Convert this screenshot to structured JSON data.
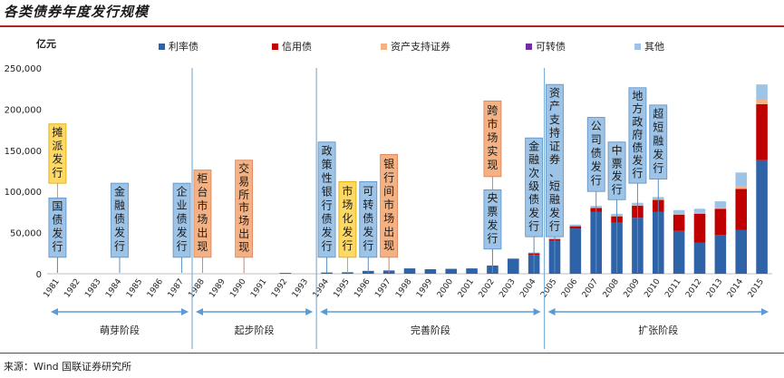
{
  "title": "各类债券年度发行规模",
  "source": "来源：Wind 国联证券研究所",
  "colors": {
    "rate": "#2e63a8",
    "credit": "#c00000",
    "abs": "#f4b183",
    "convertible": "#7030a0",
    "other": "#9dc3e6",
    "blue_box": "#9dc3e6",
    "yellow_box": "#ffd966",
    "orange_box": "#f4b183",
    "accent": "#b22222"
  },
  "chart_data": {
    "type": "bar",
    "stacked": true,
    "title": "各类债券年度发行规模",
    "ylabel": "亿元",
    "xlabel": "",
    "ylim": [
      0,
      250000
    ],
    "yticks": [
      "0",
      "50,000",
      "100,000",
      "150,000",
      "200,000",
      "250,000"
    ],
    "ytick_values": [
      0,
      50000,
      100000,
      150000,
      200000,
      250000
    ],
    "legend_position": "top",
    "categories": [
      "1981",
      "1982",
      "1983",
      "1984",
      "1985",
      "1986",
      "1987",
      "1988",
      "1989",
      "1990",
      "1991",
      "1992",
      "1993",
      "1994",
      "1995",
      "1996",
      "1997",
      "1998",
      "1999",
      "2000",
      "2001",
      "2002",
      "2003",
      "2004",
      "2005",
      "2006",
      "2007",
      "2008",
      "2009",
      "2010",
      "2011",
      "2012",
      "2013",
      "2014",
      "2015"
    ],
    "series": [
      {
        "name": "利率债",
        "key": "rate",
        "values": [
          0,
          0,
          0,
          0,
          0,
          0,
          0,
          0,
          0,
          0,
          0,
          1000,
          0,
          1500,
          1800,
          3500,
          4000,
          6500,
          5500,
          6000,
          6500,
          10000,
          18000,
          23000,
          40000,
          55000,
          75000,
          62000,
          68000,
          75000,
          52000,
          38000,
          47000,
          53000,
          138000
        ]
      },
      {
        "name": "信用债",
        "key": "credit",
        "values": [
          0,
          0,
          0,
          0,
          0,
          0,
          0,
          0,
          0,
          0,
          0,
          0,
          0,
          0,
          0,
          0,
          0,
          0,
          0,
          0,
          0,
          0,
          500,
          2000,
          2500,
          3000,
          5000,
          8000,
          15000,
          15000,
          20000,
          35000,
          32000,
          50000,
          68000
        ]
      },
      {
        "name": "资产支持证券",
        "key": "abs",
        "values": [
          0,
          0,
          0,
          0,
          0,
          0,
          0,
          0,
          0,
          0,
          0,
          0,
          0,
          0,
          0,
          0,
          0,
          0,
          0,
          0,
          0,
          0,
          0,
          0,
          100,
          300,
          500,
          300,
          200,
          200,
          400,
          1000,
          1000,
          3000,
          6000
        ]
      },
      {
        "name": "可转债",
        "key": "convertible",
        "values": [
          0,
          0,
          0,
          0,
          0,
          0,
          0,
          0,
          0,
          0,
          0,
          0,
          0,
          0,
          0,
          0,
          0,
          0,
          0,
          0,
          0,
          0,
          0,
          0,
          0,
          0,
          0,
          0,
          0,
          0,
          0,
          0,
          0,
          0,
          0
        ]
      },
      {
        "name": "其他",
        "key": "other",
        "values": [
          0,
          0,
          0,
          0,
          0,
          0,
          0,
          0,
          0,
          0,
          0,
          0,
          0,
          0,
          0,
          0,
          0,
          0,
          0,
          0,
          0,
          0,
          300,
          800,
          1000,
          1500,
          2000,
          2500,
          3000,
          3000,
          5000,
          5000,
          8000,
          17000,
          18000
        ]
      }
    ],
    "stages": [
      {
        "label": "萌芽阶段",
        "from": "1981",
        "to": "1987"
      },
      {
        "label": "起步阶段",
        "from": "1988",
        "to": "1993"
      },
      {
        "label": "完善阶段",
        "from": "1994",
        "to": "2004"
      },
      {
        "label": "扩张阶段",
        "from": "2005",
        "to": "2015"
      }
    ],
    "stage_dividers_after": [
      "1987",
      "1993",
      "2004"
    ],
    "annotations": [
      {
        "text": "摊派发行",
        "year": "1981",
        "color": "yellow",
        "top_value": 182000,
        "bottom_value": 110000
      },
      {
        "text": "国债发行",
        "year": "1981",
        "color": "blue",
        "top_value": 92000,
        "bottom_value": 20000
      },
      {
        "text": "金融债发行",
        "year": "1984",
        "color": "blue",
        "top_value": 110000,
        "bottom_value": 20000
      },
      {
        "text": "企业债发行",
        "year": "1987",
        "color": "blue",
        "top_value": 110000,
        "bottom_value": 20000
      },
      {
        "text": "柜台市场出现",
        "year": "1988",
        "color": "orange",
        "top_value": 126000,
        "bottom_value": 20000
      },
      {
        "text": "交易所市场出现",
        "year": "1990",
        "color": "orange",
        "top_value": 138000,
        "bottom_value": 20000
      },
      {
        "text": "政策性银行债发行",
        "year": "1994",
        "color": "blue",
        "top_value": 160000,
        "bottom_value": 20000
      },
      {
        "text": "市场化发行",
        "year": "1995",
        "color": "yellow",
        "top_value": 112000,
        "bottom_value": 20000
      },
      {
        "text": "可转债发行",
        "year": "1996",
        "color": "blue",
        "top_value": 112000,
        "bottom_value": 20000
      },
      {
        "text": "银行间市场出现",
        "year": "1997",
        "color": "orange",
        "top_value": 145000,
        "bottom_value": 20000
      },
      {
        "text": "跨市场实现",
        "year": "2002",
        "color": "orange",
        "top_value": 210000,
        "bottom_value": 118000
      },
      {
        "text": "央票发行",
        "year": "2002",
        "color": "blue",
        "top_value": 102000,
        "bottom_value": 30000
      },
      {
        "text": "金融次级债发行",
        "year": "2004",
        "color": "blue",
        "top_value": 165000,
        "bottom_value": 45000
      },
      {
        "text": "资产支持证券、短融发行",
        "year": "2005",
        "color": "blue",
        "top_value": 230000,
        "bottom_value": 45000
      },
      {
        "text": "公司债发行",
        "year": "2007",
        "color": "blue",
        "top_value": 190000,
        "bottom_value": 100000
      },
      {
        "text": "中票发行",
        "year": "2008",
        "color": "blue",
        "top_value": 160000,
        "bottom_value": 90000
      },
      {
        "text": "地方政府债发行",
        "year": "2009",
        "color": "blue",
        "top_value": 226000,
        "bottom_value": 110000
      },
      {
        "text": "超短融发行",
        "year": "2010",
        "color": "blue",
        "top_value": 205000,
        "bottom_value": 115000
      }
    ]
  }
}
